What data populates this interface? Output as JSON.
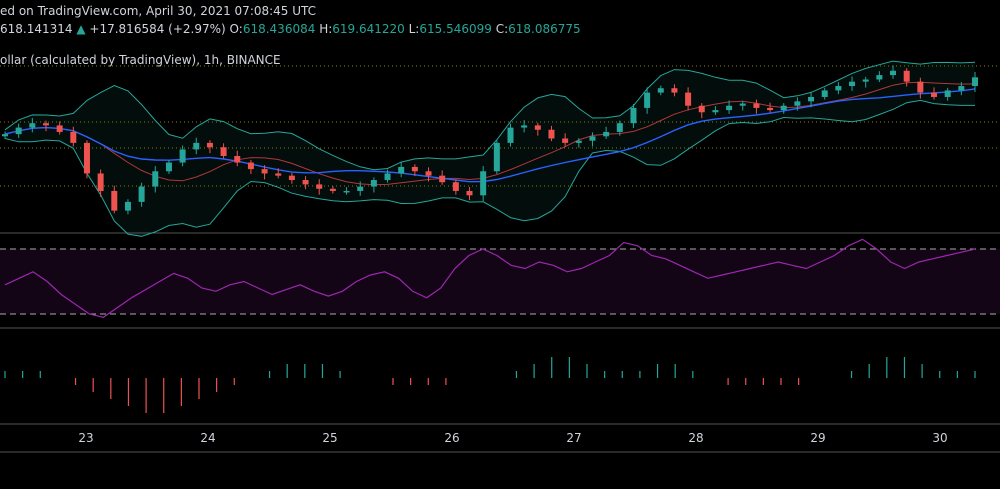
{
  "header": {
    "published": "ed on TradingView.com, April 30, 2021 07:08:45 UTC",
    "last_price": "618.141314",
    "change": "+17.816584 (+2.97%)",
    "open_label": "O:",
    "open_value": "618.436084",
    "high_label": "H:",
    "high_value": "619.641220",
    "low_label": "L:",
    "low_value": "615.546099",
    "close_label": "C:",
    "close_value": "618.086775",
    "symbol_title": "ollar (calculated by TradingView), 1h, BINANCE"
  },
  "colors": {
    "up": "#26a69a",
    "down": "#ef5350",
    "bollinger": "#26a69a",
    "ma_red": "#b2373a",
    "ma_blue": "#2962ff",
    "rsi": "#9c27b0",
    "grid_dotted": "#c8b400",
    "divider": "#555555"
  },
  "chart_data": {
    "type": "line",
    "x_ticks": [
      "23",
      "24",
      "25",
      "26",
      "27",
      "28",
      "29",
      "30"
    ],
    "price_close": [
      592,
      595,
      597,
      596,
      593,
      588,
      574,
      566,
      557,
      561,
      568,
      575,
      579,
      585,
      588,
      586,
      582,
      579,
      576,
      574,
      573,
      571,
      569,
      567,
      566,
      566,
      568,
      571,
      574,
      577,
      575,
      573,
      570,
      566,
      564,
      575,
      588,
      595,
      596,
      594,
      590,
      588,
      589,
      591,
      593,
      597,
      604,
      611,
      613,
      611,
      605,
      602,
      603,
      605,
      606,
      604,
      603,
      605,
      607,
      609,
      612,
      614,
      616,
      617,
      619,
      621,
      616,
      611,
      609,
      612,
      614,
      618
    ],
    "rsi": [
      48,
      52,
      56,
      50,
      42,
      36,
      30,
      28,
      34,
      40,
      45,
      50,
      55,
      52,
      46,
      44,
      48,
      50,
      46,
      42,
      45,
      48,
      44,
      41,
      44,
      50,
      54,
      56,
      52,
      44,
      40,
      46,
      58,
      66,
      70,
      66,
      60,
      58,
      62,
      60,
      56,
      58,
      62,
      66,
      74,
      72,
      66,
      64,
      60,
      56,
      52,
      54,
      56,
      58,
      60,
      62,
      60,
      58,
      62,
      66,
      72,
      76,
      70,
      62,
      58,
      62,
      64,
      66,
      68,
      70
    ],
    "rsi_upper": 70,
    "rsi_lower": 30,
    "histogram": [
      1,
      1,
      1,
      0,
      -1,
      -2,
      -3,
      -4,
      -5,
      -5,
      -4,
      -3,
      -2,
      -1,
      0,
      1,
      2,
      2,
      2,
      1,
      0,
      0,
      -1,
      -1,
      -1,
      -1,
      0,
      0,
      0,
      1,
      2,
      3,
      3,
      2,
      1,
      1,
      1,
      2,
      2,
      1,
      0,
      -1,
      -1,
      -1,
      -1,
      -1,
      0,
      0,
      1,
      2,
      3,
      3,
      2,
      1,
      1,
      1
    ],
    "grid": true
  }
}
